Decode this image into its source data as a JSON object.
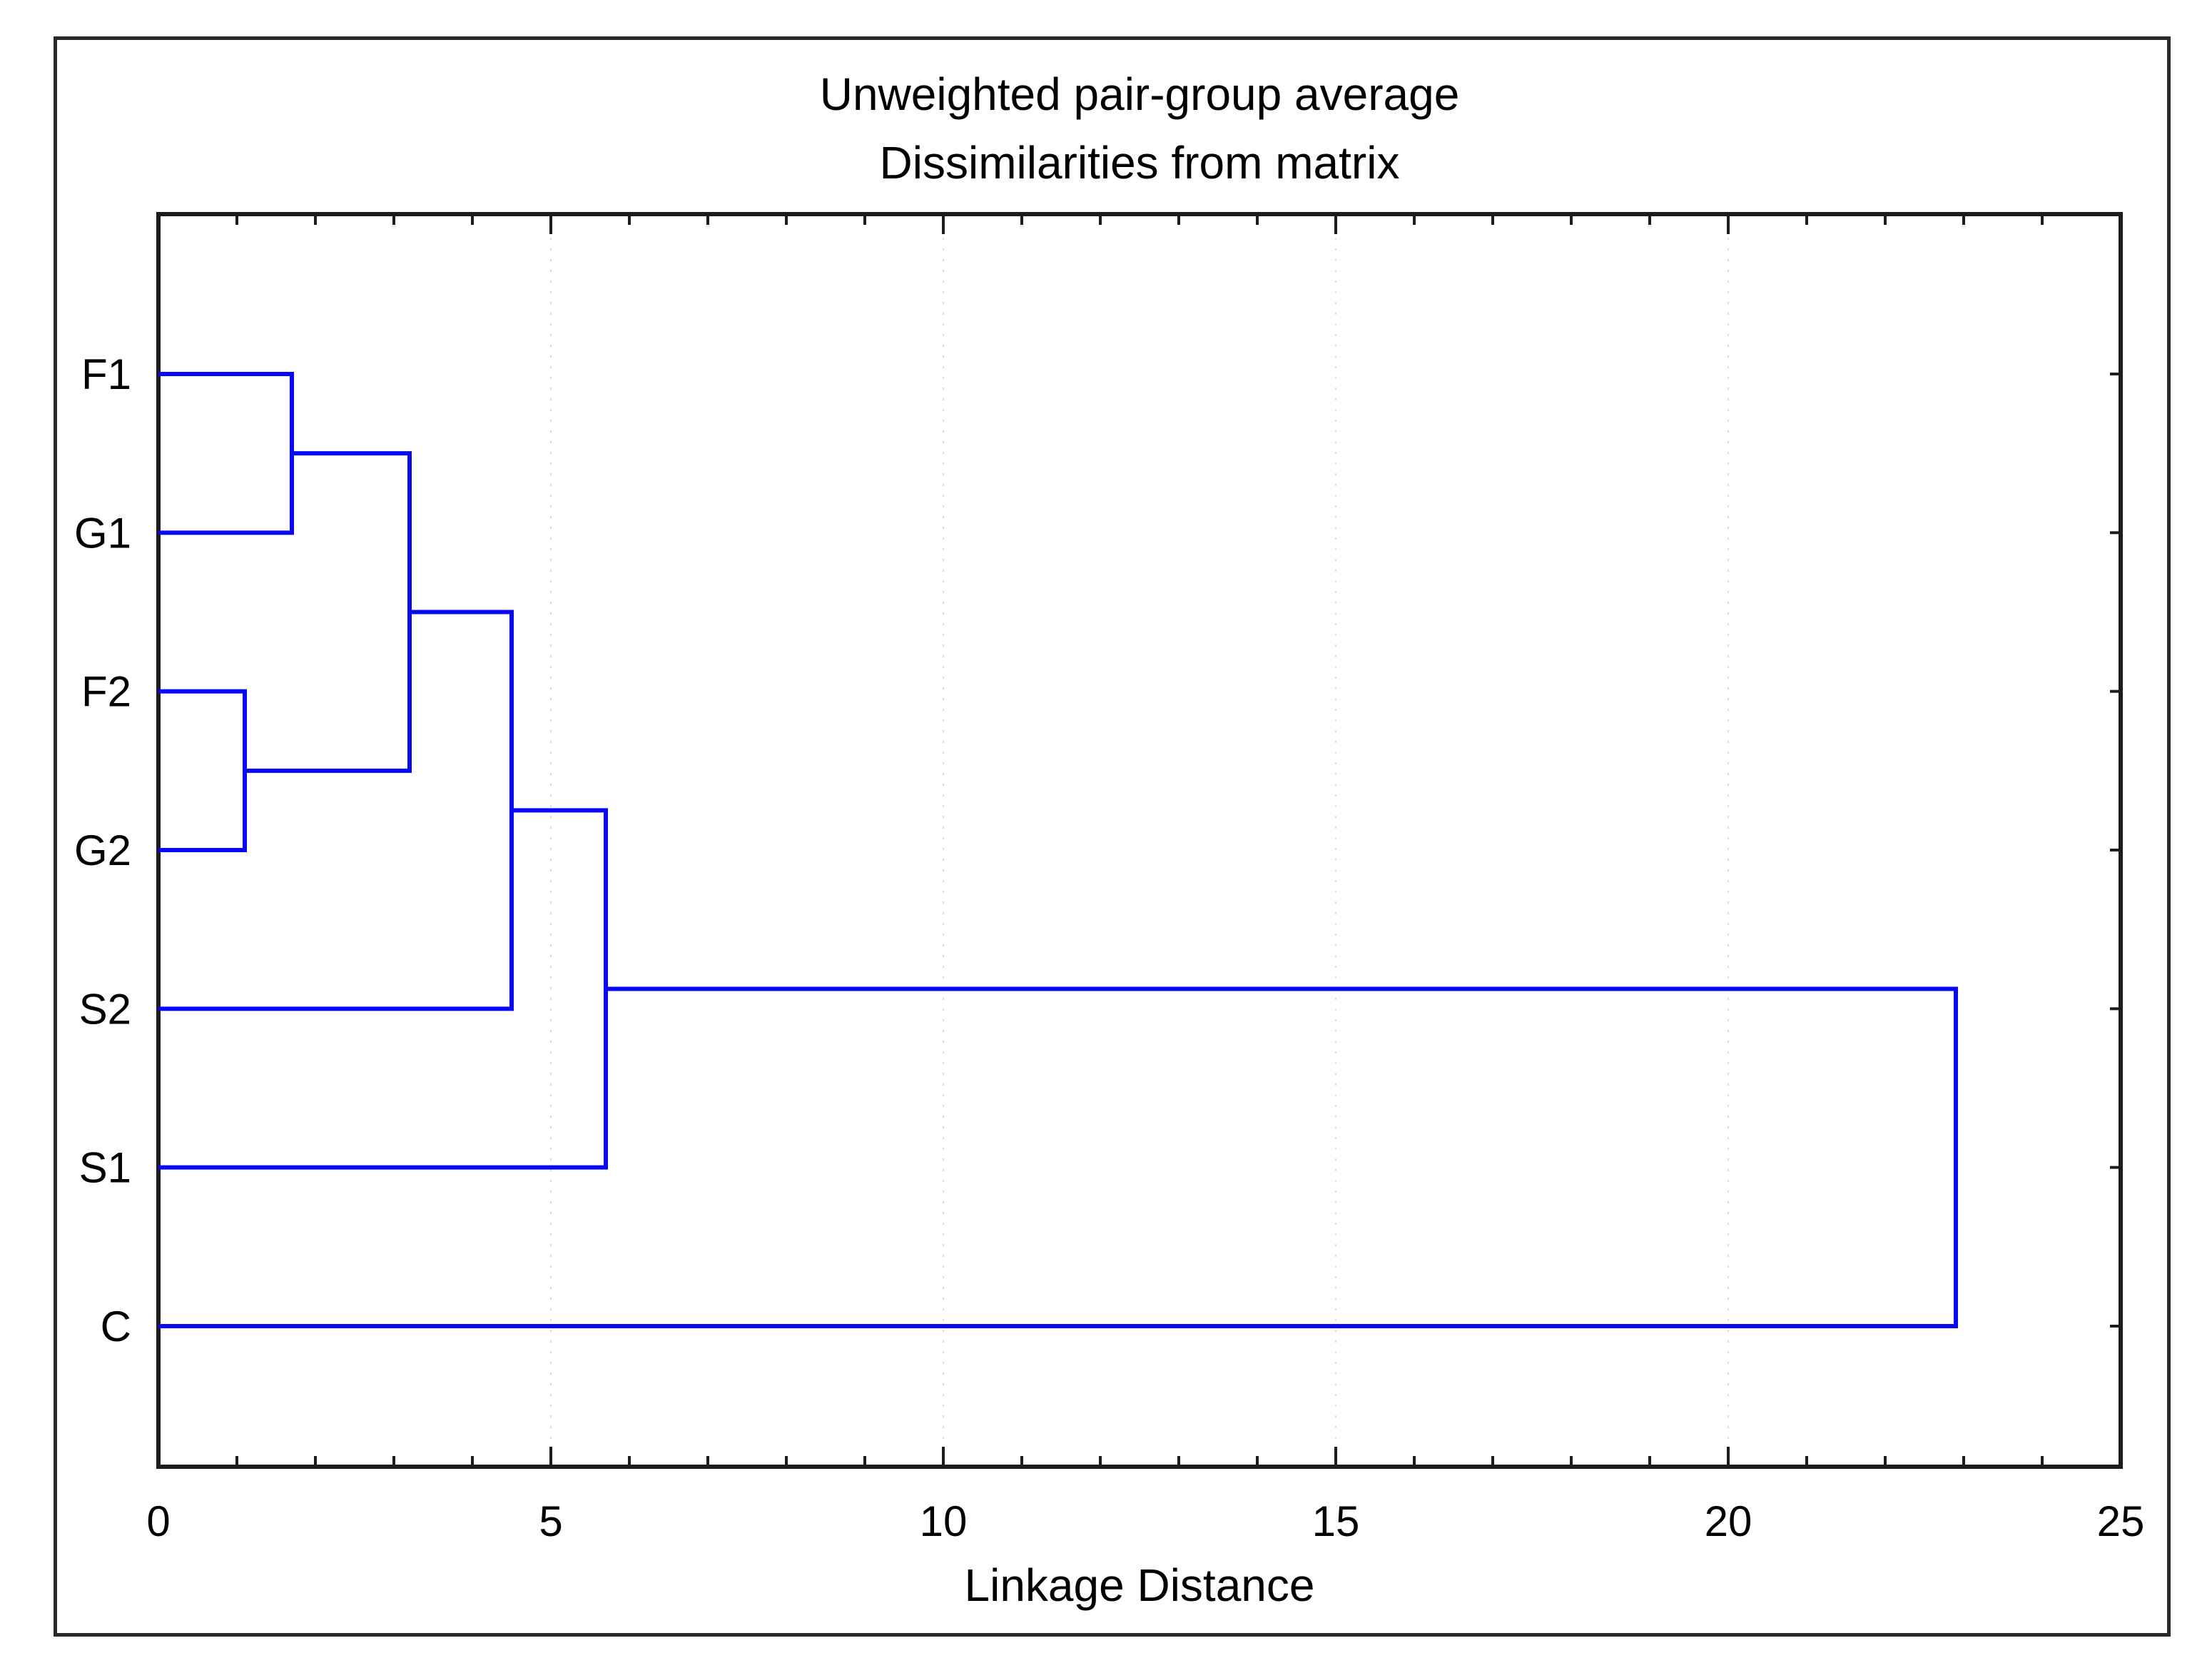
{
  "figure": {
    "title_line1": "Unweighted pair-group average",
    "title_line2": "Dissimilarities from matrix",
    "x_axis_label": "Linkage Distance"
  },
  "chart_data": {
    "type": "dendrogram",
    "title": "Unweighted pair-group average",
    "subtitle": "Dissimilarities from matrix",
    "xlabel": "Linkage Distance",
    "orientation": "horizontal-leaves-left",
    "leaves_top_to_bottom": [
      "F1",
      "G1",
      "F2",
      "G2",
      "S2",
      "S1",
      "C"
    ],
    "xlim": [
      0,
      25
    ],
    "x_major_ticks": [
      0,
      5,
      10,
      15,
      20,
      25
    ],
    "x_minor_tick_step": 1,
    "grid": {
      "vertical_dotted_at": [
        5,
        10,
        15,
        20
      ]
    },
    "merges": [
      {
        "node": 7,
        "children": [
          0,
          1
        ],
        "members": [
          "F1",
          "G1"
        ],
        "linkage_distance": 1.7
      },
      {
        "node": 8,
        "children": [
          2,
          3
        ],
        "members": [
          "F2",
          "G2"
        ],
        "linkage_distance": 1.1
      },
      {
        "node": 9,
        "children": [
          7,
          8
        ],
        "members": [
          "F1",
          "G1",
          "F2",
          "G2"
        ],
        "linkage_distance": 3.2
      },
      {
        "node": 10,
        "children": [
          9,
          4
        ],
        "members": [
          "F1",
          "G1",
          "F2",
          "G2",
          "S2"
        ],
        "linkage_distance": 4.5
      },
      {
        "node": 11,
        "children": [
          10,
          5
        ],
        "members": [
          "F1",
          "G1",
          "F2",
          "G2",
          "S2",
          "S1"
        ],
        "linkage_distance": 5.7
      },
      {
        "node": 12,
        "children": [
          11,
          6
        ],
        "members": [
          "F1",
          "G1",
          "F2",
          "G2",
          "S2",
          "S1",
          "C"
        ],
        "linkage_distance": 22.9
      }
    ],
    "colors": {
      "link": "#0808F2",
      "axis": "#1c1c1c",
      "grid": "#dcdcdc",
      "frame": "#2a2a2a",
      "text": "#000000"
    }
  }
}
